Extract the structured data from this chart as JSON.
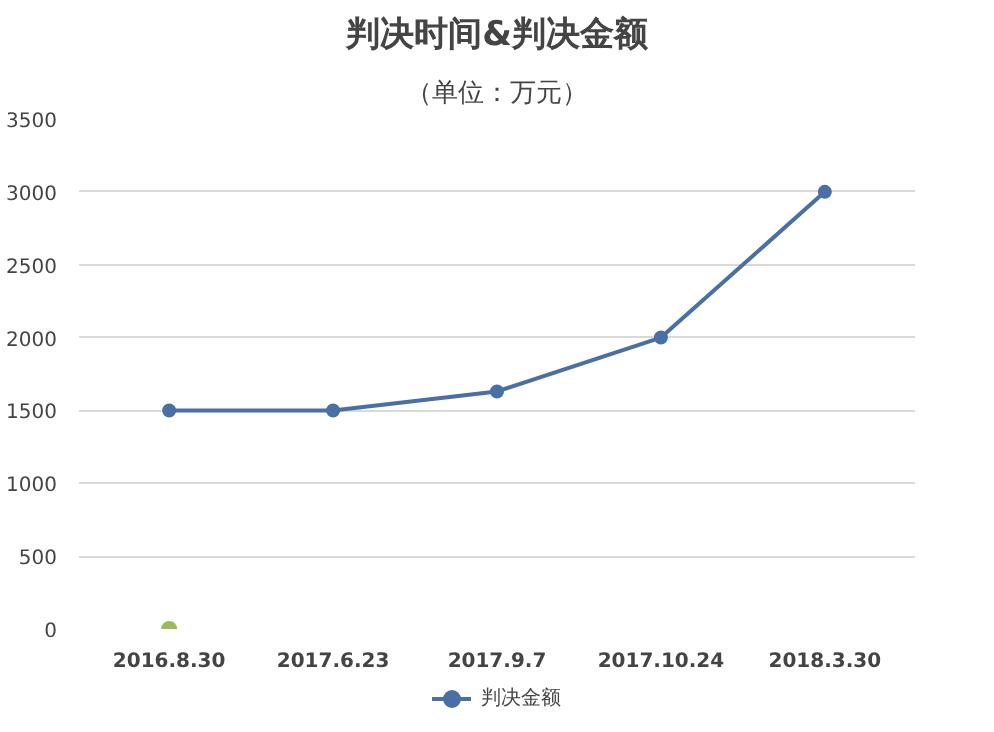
{
  "chart_data": {
    "type": "line",
    "title": "判决时间&判决金额",
    "subtitle": "（单位：万元）",
    "categories": [
      "2016.8.30",
      "2017.6.23",
      "2017.9.7",
      "2017.10.24",
      "2018.3.30"
    ],
    "series": [
      {
        "name": "判决金额",
        "color": "#4a6fa5",
        "values": [
          1500,
          1500,
          1630,
          2000,
          3000
        ]
      },
      {
        "type": "scatter",
        "color": "#9bbb59",
        "values": [
          0,
          null,
          null,
          null,
          null
        ]
      }
    ],
    "ylim": [
      0,
      3500
    ],
    "yticks": [
      0,
      500,
      1000,
      1500,
      2000,
      2500,
      3000,
      3500
    ],
    "grid": "y",
    "legend": "bottom",
    "marker": "circle",
    "line_style": "solid"
  }
}
